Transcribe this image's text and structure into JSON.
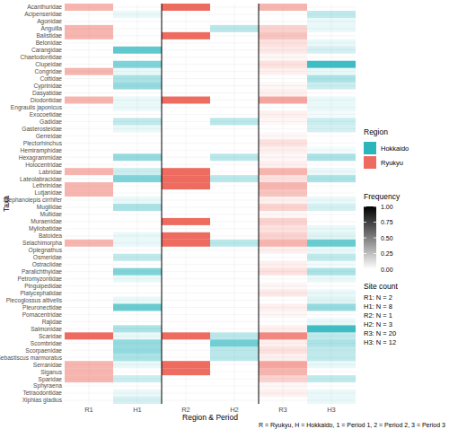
{
  "chart_data": {
    "type": "heatmap",
    "x_label": "Region & Period",
    "y_label": "Taxa",
    "caption": "R = Ryukyu, H = Hokkaido, 1 = Period 1, 2 = Period 2, 3 = Period 3",
    "x": [
      "R1",
      "H1",
      "R2",
      "H2",
      "R3",
      "H3"
    ],
    "column_regions": [
      "Ryukyu",
      "Hokkaido",
      "Ryukyu",
      "Hokkaido",
      "Ryukyu",
      "Hokkaido"
    ],
    "y": [
      "Acanthuridae",
      "Acipenseridae",
      "Agonidae",
      "Anguilla",
      "Balistidae",
      "Belonidae",
      "Carangidae",
      "Chaetodontidae",
      "Clupeidae",
      "Congridae",
      "Cottidae",
      "Cyprinidae",
      "Dasyatidae",
      "Diodontidae",
      "Engraulis japonicus",
      "Exocoetidae",
      "Gadidae",
      "Gasterosteidae",
      "Gerreidae",
      "Plectorhinchus",
      "Hemiramphidae",
      "Hexagrammidae",
      "Holocentridae",
      "Labridae",
      "Lateolabracidae",
      "Lethrinidae",
      "Lutjanidae",
      "Stephanolepis cirrhifer",
      "Mugilidae",
      "Mullidae",
      "Muraenidae",
      "Myliobatidae",
      "Batoidea",
      "Selachimorpha",
      "Oplegnathus",
      "Osmeridae",
      "Ostraciidae",
      "Paralichthyidae",
      "Petromyzontidae",
      "Pinguipedidae",
      "Platycephalidae",
      "Plecoglossus altivelis",
      "Pleuronectidae",
      "Pomacentridae",
      "Rajidae",
      "Salmonidae",
      "Scaridae",
      "Scombridae",
      "Scorpaenidae",
      "Sebastiscus marmoratus",
      "Serranidae",
      "Siganus",
      "Sparidae",
      "Sphyraena",
      "Tetraodontidae",
      "Xiphias gladius"
    ],
    "cells": [
      [
        0.5,
        0,
        1,
        0,
        0.5,
        0
      ],
      [
        0,
        0.1,
        0,
        0,
        0,
        0.3
      ],
      [
        0,
        0,
        0,
        0,
        0,
        0.1
      ],
      [
        0.5,
        0,
        0,
        0.33,
        0.3,
        0.1
      ],
      [
        0.5,
        0,
        1,
        0,
        0.4,
        0
      ],
      [
        0,
        0,
        0,
        0,
        0.2,
        0.1
      ],
      [
        0,
        0.75,
        0,
        0,
        0.15,
        0.2
      ],
      [
        0,
        0,
        0,
        0,
        0.05,
        0
      ],
      [
        0,
        0.6,
        0,
        0,
        0.2,
        0.9
      ],
      [
        0.5,
        0.1,
        0,
        0,
        0.1,
        0.1
      ],
      [
        0,
        0.4,
        0,
        0,
        0,
        0.4
      ],
      [
        0,
        0.5,
        0,
        0,
        0.05,
        0.25
      ],
      [
        0,
        0,
        0,
        0,
        0.1,
        0
      ],
      [
        0.5,
        0.1,
        1,
        0,
        0.6,
        0.1
      ],
      [
        0,
        0.1,
        0,
        0,
        0,
        0.1
      ],
      [
        0,
        0,
        0,
        0,
        0.1,
        0.05
      ],
      [
        0,
        0.3,
        0,
        0.33,
        0.05,
        0.25
      ],
      [
        0,
        0.1,
        0,
        0,
        0,
        0.2
      ],
      [
        0,
        0,
        0,
        0,
        0.05,
        0
      ],
      [
        0,
        0,
        0,
        0,
        0.2,
        0
      ],
      [
        0,
        0,
        0,
        0,
        0.1,
        0.05
      ],
      [
        0,
        0.5,
        0,
        0.33,
        0.05,
        0.4
      ],
      [
        0,
        0,
        0,
        0,
        0.1,
        0
      ],
      [
        0.5,
        0.25,
        1,
        0,
        0.5,
        0.1
      ],
      [
        0,
        0.6,
        1,
        0.33,
        0.2,
        0.4
      ],
      [
        0.5,
        0,
        1,
        0,
        0.5,
        0
      ],
      [
        0.5,
        0,
        0,
        0,
        0.4,
        0
      ],
      [
        0,
        0.1,
        0,
        0,
        0.1,
        0.1
      ],
      [
        0,
        0.4,
        0,
        0,
        0.3,
        0.2
      ],
      [
        0,
        0,
        0,
        0,
        0.05,
        0
      ],
      [
        0,
        0,
        1,
        0,
        0.3,
        0
      ],
      [
        0,
        0,
        0,
        0,
        0.2,
        0.1
      ],
      [
        0,
        0.1,
        1,
        0,
        0.3,
        0.15
      ],
      [
        0.5,
        0.1,
        1,
        0.33,
        0.5,
        0.7
      ],
      [
        0,
        0,
        0,
        0,
        0.1,
        0.1
      ],
      [
        0,
        0.3,
        0,
        0,
        0,
        0.3
      ],
      [
        0,
        0,
        0,
        0,
        0.1,
        0.05
      ],
      [
        0,
        0.6,
        0,
        0,
        0.2,
        0.4
      ],
      [
        0,
        0.1,
        0,
        0,
        0,
        0.1
      ],
      [
        0,
        0,
        0,
        0,
        0.05,
        0
      ],
      [
        0,
        0,
        0,
        0,
        0.15,
        0.1
      ],
      [
        0,
        0.1,
        0,
        0,
        0,
        0.15
      ],
      [
        0,
        0.7,
        0,
        0,
        0.1,
        0.5
      ],
      [
        0,
        0,
        0,
        0,
        0.05,
        0
      ],
      [
        0,
        0,
        0,
        0,
        0,
        0.1
      ],
      [
        0,
        0.4,
        0,
        0,
        0.1,
        0.9
      ],
      [
        1,
        0.1,
        1,
        0.33,
        0.8,
        0.3
      ],
      [
        0,
        0.5,
        0,
        0.67,
        0.1,
        0.4
      ],
      [
        0,
        0.5,
        0,
        0.33,
        0.2,
        0.3
      ],
      [
        0,
        0.4,
        0,
        0.33,
        0.1,
        0.3
      ],
      [
        0.5,
        0.1,
        1,
        0,
        0.6,
        0.1
      ],
      [
        0.5,
        0,
        1,
        0,
        0.5,
        0
      ],
      [
        0.5,
        0.25,
        0,
        0,
        0.3,
        0.3
      ],
      [
        0,
        0,
        0,
        0,
        0.05,
        0
      ],
      [
        0,
        0.1,
        0,
        0,
        0.1,
        0.1
      ],
      [
        0,
        0.2,
        0,
        0,
        0,
        0.1
      ]
    ],
    "regions_title": "Region",
    "regions": [
      {
        "name": "Hokkaido",
        "color": "#2bb6be"
      },
      {
        "name": "Ryukyu",
        "color": "#ee6b60"
      }
    ],
    "color_title": "Frequency",
    "color_range": [
      0,
      1
    ],
    "color_ticks": [
      {
        "value": 0,
        "label": "0.00"
      },
      {
        "value": 0.25,
        "label": "0.25"
      },
      {
        "value": 0.5,
        "label": "0.50"
      },
      {
        "value": 0.75,
        "label": "0.75"
      },
      {
        "value": 1,
        "label": "1.00"
      }
    ],
    "site_count_title": "Site count",
    "site_counts": [
      "R1: N = 2",
      "H1: N = 8",
      "R2: N = 1",
      "H2: N = 3",
      "R3: N = 20",
      "H3: N = 12"
    ],
    "grid": true
  }
}
